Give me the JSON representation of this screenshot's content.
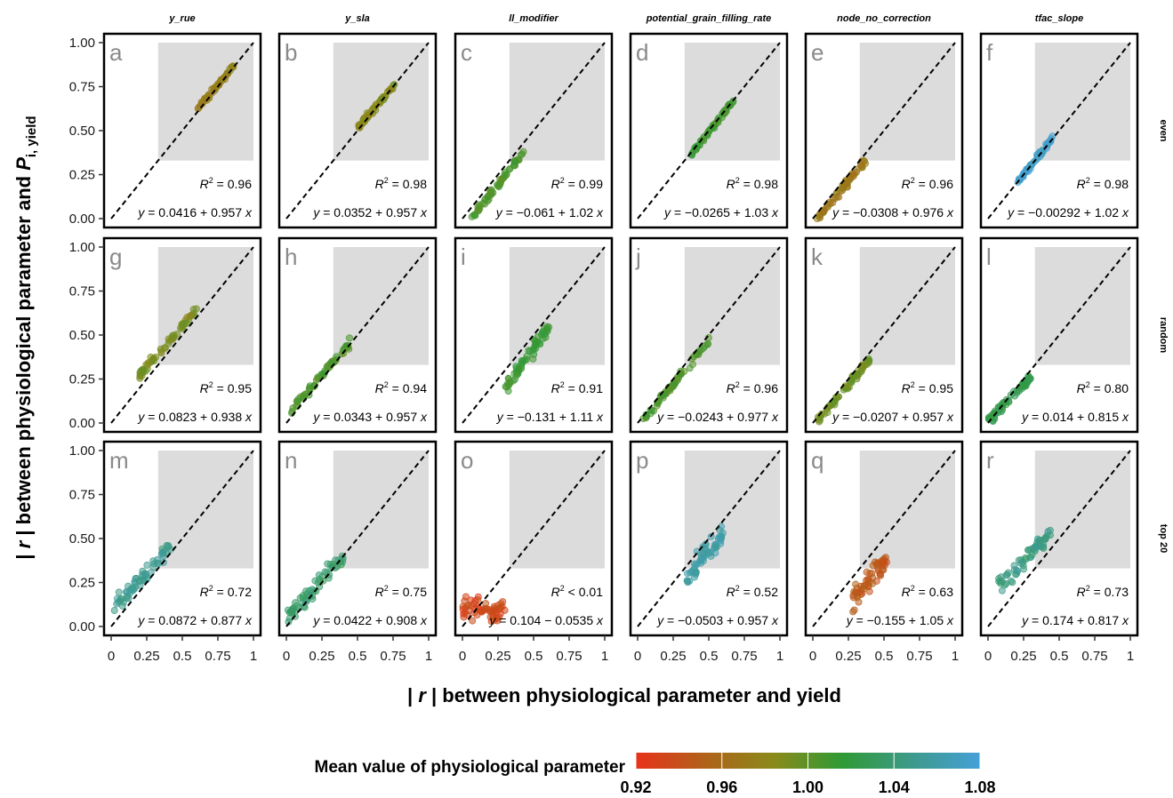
{
  "chart_data": {
    "type": "scatter",
    "columns": [
      "y_rue",
      "y_sla",
      "ll_modifier",
      "potential_grain_filling_rate",
      "node_no_correction",
      "tfac_slope"
    ],
    "rows": [
      "even",
      "random",
      "top 20"
    ],
    "xlabel_parts": [
      "| ",
      "r",
      " | between physiological parameter and yield"
    ],
    "ylabel_parts": [
      "| ",
      "r",
      " | between physiological parameter and ",
      "P",
      "i, yield"
    ],
    "xlim": [
      0,
      1
    ],
    "ylim": [
      0,
      1
    ],
    "x_ticks": [
      "0",
      "0.25",
      "0.5",
      "0.75",
      "1"
    ],
    "y_ticks": [
      "0.00",
      "0.25",
      "0.50",
      "0.75",
      "1.00"
    ],
    "reference_line": "y = x (dashed)",
    "shaded_region": {
      "x": [
        0.33,
        1.0
      ],
      "y": [
        0.33,
        1.0
      ]
    },
    "colorbar": {
      "title": "Mean value of physiological parameter",
      "ticks": [
        "0.92",
        "0.96",
        "1.00",
        "1.04",
        "1.08"
      ],
      "range": [
        0.92,
        1.08
      ],
      "colors": [
        "#e8321a",
        "#b0621a",
        "#8a8a1a",
        "#2f9a35",
        "#3d9a8a",
        "#45a0d8"
      ]
    },
    "panels": [
      {
        "letter": "a",
        "column": "y_rue",
        "row": "even",
        "r2": "R² = 0.96",
        "r2_label": "0.96",
        "equation": "y = 0.0416 + 0.957 x",
        "eq_intercept": "0.0416",
        "eq_op": "+",
        "eq_slope": "0.957",
        "fit": {
          "intercept": 0.0416,
          "slope": 0.957
        },
        "cloud": {
          "x_range": [
            0.6,
            0.86
          ],
          "n": 55,
          "spread": 0.012,
          "color_value": 0.975
        }
      },
      {
        "letter": "b",
        "column": "y_sla",
        "row": "even",
        "r2": "R² = 0.98",
        "r2_label": "0.98",
        "equation": "y = 0.0352 + 0.957 x",
        "eq_intercept": "0.0352",
        "eq_op": "+",
        "eq_slope": "0.957",
        "fit": {
          "intercept": 0.0352,
          "slope": 0.957
        },
        "cloud": {
          "x_range": [
            0.5,
            0.77
          ],
          "n": 55,
          "spread": 0.012,
          "color_value": 0.985
        }
      },
      {
        "letter": "c",
        "column": "ll_modifier",
        "row": "even",
        "r2": "R² = 0.99",
        "r2_label": "0.99",
        "equation": "y = −0.061 + 1.02 x",
        "eq_intercept": "−0.061",
        "eq_op": "+",
        "eq_slope": "1.02",
        "fit": {
          "intercept": -0.061,
          "slope": 1.02
        },
        "cloud": {
          "x_range": [
            0.06,
            0.43
          ],
          "n": 60,
          "spread": 0.015,
          "color_value": 1.005
        }
      },
      {
        "letter": "d",
        "column": "potential_grain_filling_rate",
        "row": "even",
        "r2": "R² = 0.98",
        "r2_label": "0.98",
        "equation": "y = −0.0265 + 1.03 x",
        "eq_intercept": "−0.0265",
        "eq_op": "+",
        "eq_slope": "1.03",
        "fit": {
          "intercept": -0.0265,
          "slope": 1.03
        },
        "cloud": {
          "x_range": [
            0.38,
            0.68
          ],
          "n": 55,
          "spread": 0.014,
          "color_value": 1.01
        }
      },
      {
        "letter": "e",
        "column": "node_no_correction",
        "row": "even",
        "r2": "R² = 0.96",
        "r2_label": "0.96",
        "equation": "y = −0.0308 + 0.976 x",
        "eq_intercept": "−0.0308",
        "eq_op": "+",
        "eq_slope": "0.976",
        "fit": {
          "intercept": -0.0308,
          "slope": 0.976
        },
        "cloud": {
          "x_range": [
            0.03,
            0.37
          ],
          "n": 60,
          "spread": 0.018,
          "color_value": 0.97
        }
      },
      {
        "letter": "f",
        "column": "tfac_slope",
        "row": "even",
        "r2": "R² = 0.98",
        "r2_label": "0.98",
        "equation": "y = −0.00292 + 1.02 x",
        "eq_intercept": "−0.00292",
        "eq_op": "+",
        "eq_slope": "1.02",
        "fit": {
          "intercept": -0.00292,
          "slope": 1.02
        },
        "cloud": {
          "x_range": [
            0.2,
            0.46
          ],
          "n": 55,
          "spread": 0.012,
          "color_value": 1.075
        }
      },
      {
        "letter": "g",
        "column": "y_rue",
        "row": "random",
        "r2": "R² = 0.95",
        "r2_label": "0.95",
        "equation": "y = 0.0823 + 0.938 x",
        "eq_intercept": "0.0823",
        "eq_op": "+",
        "eq_slope": "0.938",
        "fit": {
          "intercept": 0.0823,
          "slope": 0.938
        },
        "cloud": {
          "x_range": [
            0.2,
            0.6
          ],
          "n": 60,
          "spread": 0.02,
          "color_value": 0.99
        }
      },
      {
        "letter": "h",
        "column": "y_sla",
        "row": "random",
        "r2": "R² = 0.94",
        "r2_label": "0.94",
        "equation": "y = 0.0343 + 0.957 x",
        "eq_intercept": "0.0343",
        "eq_op": "+",
        "eq_slope": "0.957",
        "fit": {
          "intercept": 0.0343,
          "slope": 0.957
        },
        "cloud": {
          "x_range": [
            0.03,
            0.45
          ],
          "n": 60,
          "spread": 0.022,
          "color_value": 1.005
        }
      },
      {
        "letter": "i",
        "column": "ll_modifier",
        "row": "random",
        "r2": "R² = 0.91",
        "r2_label": "0.91",
        "equation": "y = −0.131 + 1.11 x",
        "eq_intercept": "−0.131",
        "eq_op": "+",
        "eq_slope": "1.11",
        "fit": {
          "intercept": -0.131,
          "slope": 1.11
        },
        "cloud": {
          "x_range": [
            0.3,
            0.62
          ],
          "n": 60,
          "spread": 0.03,
          "color_value": 1.015
        }
      },
      {
        "letter": "j",
        "column": "potential_grain_filling_rate",
        "row": "random",
        "r2": "R² = 0.96",
        "r2_label": "0.96",
        "equation": "y = −0.0243 + 0.977 x",
        "eq_intercept": "−0.0243",
        "eq_op": "+",
        "eq_slope": "0.977",
        "fit": {
          "intercept": -0.0243,
          "slope": 0.977
        },
        "cloud": {
          "x_range": [
            0.03,
            0.5
          ],
          "n": 65,
          "spread": 0.018,
          "color_value": 1.005
        }
      },
      {
        "letter": "k",
        "column": "node_no_correction",
        "row": "random",
        "r2": "R² = 0.95",
        "r2_label": "0.95",
        "equation": "y = −0.0207 + 0.957 x",
        "eq_intercept": "−0.0207",
        "eq_op": "+",
        "eq_slope": "0.957",
        "fit": {
          "intercept": -0.0207,
          "slope": 0.957
        },
        "cloud": {
          "x_range": [
            0.02,
            0.4
          ],
          "n": 65,
          "spread": 0.018,
          "color_value": 0.995
        }
      },
      {
        "letter": "l",
        "column": "tfac_slope",
        "row": "random",
        "r2": "R² = 0.80",
        "r2_label": "0.80",
        "equation": "y = 0.014 + 0.815 x",
        "eq_intercept": "0.014",
        "eq_op": "+",
        "eq_slope": "0.815",
        "fit": {
          "intercept": 0.014,
          "slope": 0.815
        },
        "cloud": {
          "x_range": [
            0.0,
            0.3
          ],
          "n": 60,
          "spread": 0.025,
          "color_value": 1.025
        }
      },
      {
        "letter": "m",
        "column": "y_rue",
        "row": "top 20",
        "r2": "R² = 0.72",
        "r2_label": "0.72",
        "equation": "y = 0.0872 + 0.877 x",
        "eq_intercept": "0.0872",
        "eq_op": "+",
        "eq_slope": "0.877",
        "fit": {
          "intercept": 0.0872,
          "slope": 0.877
        },
        "cloud": {
          "x_range": [
            0.02,
            0.42
          ],
          "n": 60,
          "spread": 0.04,
          "color_value": 1.05
        }
      },
      {
        "letter": "n",
        "column": "y_sla",
        "row": "top 20",
        "r2": "R² = 0.75",
        "r2_label": "0.75",
        "equation": "y = 0.0422 + 0.908 x",
        "eq_intercept": "0.0422",
        "eq_op": "+",
        "eq_slope": "0.908",
        "fit": {
          "intercept": 0.0422,
          "slope": 0.908
        },
        "cloud": {
          "x_range": [
            0.0,
            0.4
          ],
          "n": 60,
          "spread": 0.04,
          "color_value": 1.035
        }
      },
      {
        "letter": "o",
        "column": "ll_modifier",
        "row": "top 20",
        "r2": "R² < 0.01",
        "r2_label": "< 0.01",
        "equation": "y = 0.104 − 0.0535 x",
        "eq_intercept": "0.104",
        "eq_op": "−",
        "eq_slope": "0.0535",
        "fit": {
          "intercept": 0.104,
          "slope": -0.0535
        },
        "cloud": {
          "x_range": [
            0.0,
            0.32
          ],
          "n": 60,
          "spread": 0.06,
          "color_value": 0.935
        }
      },
      {
        "letter": "p",
        "column": "potential_grain_filling_rate",
        "row": "top 20",
        "r2": "R² = 0.52",
        "r2_label": "0.52",
        "equation": "y = −0.0503 + 0.957 x",
        "eq_intercept": "−0.0503",
        "eq_op": "+",
        "eq_slope": "0.957",
        "fit": {
          "intercept": -0.0503,
          "slope": 0.957
        },
        "cloud": {
          "x_range": [
            0.34,
            0.6
          ],
          "n": 60,
          "spread": 0.05,
          "color_value": 1.06
        }
      },
      {
        "letter": "q",
        "column": "node_no_correction",
        "row": "top 20",
        "r2": "R² = 0.63",
        "r2_label": "0.63",
        "equation": "y = −0.155 + 1.05 x",
        "eq_intercept": "−0.155",
        "eq_op": "+",
        "eq_slope": "1.05",
        "fit": {
          "intercept": -0.155,
          "slope": 1.05
        },
        "cloud": {
          "x_range": [
            0.28,
            0.52
          ],
          "n": 60,
          "spread": 0.05,
          "color_value": 0.945
        }
      },
      {
        "letter": "r",
        "column": "tfac_slope",
        "row": "top 20",
        "r2": "R² = 0.73",
        "r2_label": "0.73",
        "equation": "y = 0.174 + 0.817 x",
        "eq_intercept": "0.174",
        "eq_op": "+",
        "eq_slope": "0.817",
        "fit": {
          "intercept": 0.174,
          "slope": 0.817
        },
        "cloud": {
          "x_range": [
            0.07,
            0.44
          ],
          "n": 60,
          "spread": 0.04,
          "color_value": 1.045
        }
      }
    ]
  }
}
